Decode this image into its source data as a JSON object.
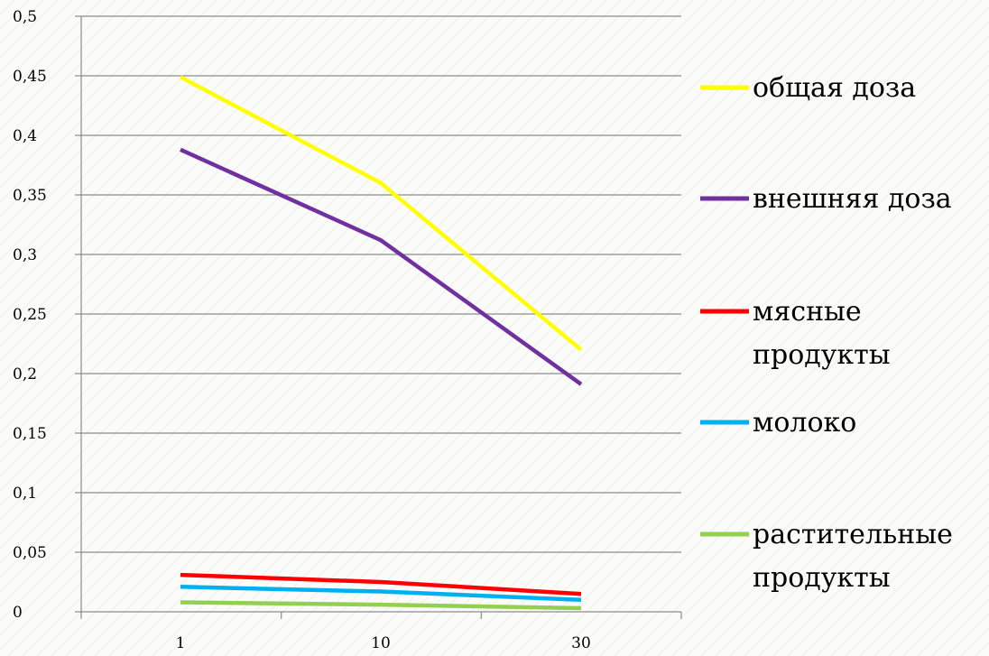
{
  "chart_data": {
    "type": "line",
    "categories": [
      "1",
      "10",
      "30"
    ],
    "ylim": [
      0,
      0.5
    ],
    "y_ticks": [
      "0",
      "0,05",
      "0,1",
      "0,15",
      "0,2",
      "0,25",
      "0,3",
      "0,35",
      "0,4",
      "0,45",
      "0,5"
    ],
    "grid": "horizontal",
    "legend_position": "right",
    "series": [
      {
        "name": "общая доза",
        "name_lines": [
          "общая доза"
        ],
        "color": "#ffff00",
        "values": [
          0.449,
          0.36,
          0.22
        ]
      },
      {
        "name": "внешняя доза",
        "name_lines": [
          "внешняя доза"
        ],
        "color": "#7030a0",
        "values": [
          0.388,
          0.312,
          0.191
        ]
      },
      {
        "name": "мясные продукты",
        "name_lines": [
          "мясные",
          "продукты"
        ],
        "color": "#ff0000",
        "values": [
          0.031,
          0.025,
          0.015
        ]
      },
      {
        "name": "молоко",
        "name_lines": [
          "молоко"
        ],
        "color": "#00b0f0",
        "values": [
          0.021,
          0.017,
          0.01
        ]
      },
      {
        "name": "растительные продукты",
        "name_lines": [
          "растительные",
          "продукты"
        ],
        "color": "#92d050",
        "values": [
          0.008,
          0.006,
          0.003
        ]
      }
    ]
  }
}
